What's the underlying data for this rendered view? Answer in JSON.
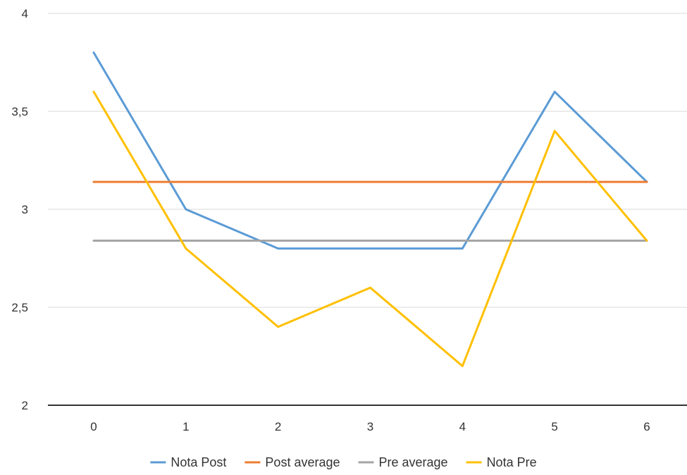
{
  "chart_data": {
    "type": "line",
    "x": [
      0,
      1,
      2,
      3,
      4,
      5,
      6
    ],
    "ylim": [
      2,
      4
    ],
    "yticks": [
      2,
      2.5,
      3,
      3.5,
      4
    ],
    "ytick_labels": [
      "2",
      "2,5",
      "3",
      "3,5",
      "4"
    ],
    "xtick_labels": [
      "0",
      "1",
      "2",
      "3",
      "4",
      "5",
      "6"
    ],
    "grid": true,
    "legend_position": "bottom",
    "series": [
      {
        "name": "Nota Post",
        "color": "#5b9bd5",
        "values": [
          3.8,
          3.0,
          2.8,
          2.8,
          2.8,
          3.6,
          3.14
        ]
      },
      {
        "name": "Post average",
        "color": "#ed7d31",
        "values": [
          3.14,
          3.14,
          3.14,
          3.14,
          3.14,
          3.14,
          3.14
        ]
      },
      {
        "name": "Pre average",
        "color": "#a5a5a5",
        "values": [
          2.84,
          2.84,
          2.84,
          2.84,
          2.84,
          2.84,
          2.84
        ]
      },
      {
        "name": "Nota Pre",
        "color": "#ffc000",
        "values": [
          3.6,
          2.8,
          2.4,
          2.6,
          2.2,
          3.4,
          2.84
        ]
      }
    ]
  }
}
